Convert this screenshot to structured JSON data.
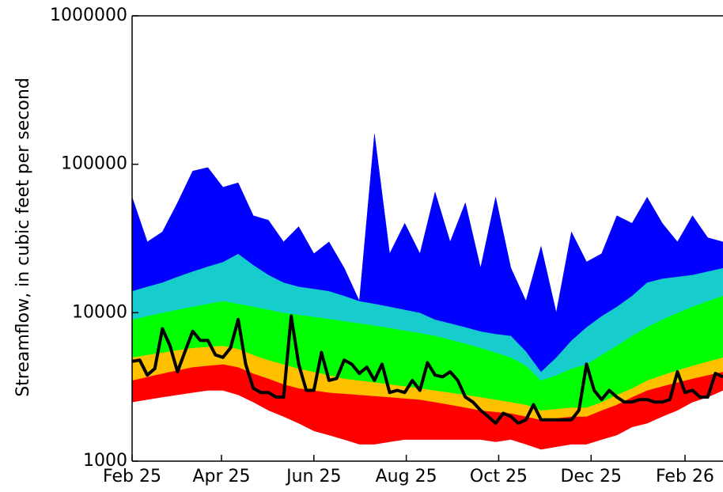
{
  "chart_data": {
    "type": "band",
    "ylabel": "Streamflow, in cubic feet per second",
    "ylog": true,
    "ylim": [
      1000,
      1000000
    ],
    "yticks": [
      1000,
      10000,
      100000,
      1000000
    ],
    "xlim": [
      0,
      390
    ],
    "xticks": [
      {
        "value": 0,
        "label": "Feb 25"
      },
      {
        "value": 59,
        "label": "Apr 25"
      },
      {
        "value": 120,
        "label": "Jun 25"
      },
      {
        "value": 181,
        "label": "Aug 25"
      },
      {
        "value": 242,
        "label": "Oct 25"
      },
      {
        "value": 303,
        "label": "Dec 25"
      },
      {
        "value": 365,
        "label": "Feb 26"
      }
    ],
    "x": [
      0,
      10,
      20,
      30,
      40,
      50,
      60,
      70,
      80,
      90,
      100,
      110,
      120,
      130,
      140,
      150,
      160,
      170,
      180,
      190,
      200,
      210,
      220,
      230,
      240,
      250,
      260,
      270,
      280,
      290,
      300,
      310,
      320,
      330,
      340,
      350,
      360,
      370,
      380,
      390
    ],
    "series": [
      {
        "values": [
          2500,
          2600,
          2700,
          2800,
          2900,
          3000,
          3000,
          2800,
          2500,
          2200,
          2000,
          1800,
          1600,
          1500,
          1400,
          1300,
          1300,
          1350,
          1400,
          1400,
          1400,
          1400,
          1400,
          1400,
          1350,
          1400,
          1300,
          1200,
          1250,
          1300,
          1300,
          1400,
          1500,
          1700,
          1800,
          2000,
          2200,
          2500,
          2700,
          3000
        ]
      },
      {
        "color": "#ff0000",
        "values": [
          3500,
          3700,
          3900,
          4100,
          4300,
          4400,
          4500,
          4300,
          3900,
          3600,
          3300,
          3100,
          3000,
          2900,
          2850,
          2800,
          2750,
          2700,
          2650,
          2600,
          2500,
          2400,
          2300,
          2200,
          2150,
          2100,
          2000,
          1900,
          1950,
          2000,
          2000,
          2200,
          2400,
          2700,
          3000,
          3200,
          3400,
          3600,
          3800,
          4000
        ]
      },
      {
        "color": "#ffc000",
        "values": [
          5000,
          5200,
          5400,
          5600,
          5800,
          5900,
          6000,
          5700,
          5200,
          4800,
          4500,
          4200,
          4000,
          3800,
          3600,
          3500,
          3400,
          3300,
          3200,
          3100,
          3000,
          2900,
          2800,
          2700,
          2600,
          2500,
          2400,
          2200,
          2250,
          2300,
          2300,
          2500,
          2800,
          3100,
          3500,
          3800,
          4100,
          4400,
          4700,
          5000
        ]
      },
      {
        "color": "#00ff00",
        "values": [
          9000,
          9500,
          10000,
          10500,
          11000,
          11500,
          12000,
          11500,
          11000,
          10500,
          10000,
          9700,
          9400,
          9100,
          8800,
          8500,
          8200,
          7900,
          7600,
          7300,
          7000,
          6600,
          6200,
          5800,
          5400,
          5000,
          4400,
          3500,
          3800,
          4200,
          4500,
          5200,
          6000,
          7000,
          8000,
          9000,
          10000,
          11000,
          12000,
          13000
        ]
      },
      {
        "color": "#17cccc",
        "values": [
          14000,
          15000,
          16000,
          17500,
          19000,
          20500,
          22000,
          25000,
          21000,
          18000,
          16000,
          15000,
          14500,
          14000,
          13000,
          12000,
          11500,
          11000,
          10500,
          10000,
          9000,
          8500,
          8000,
          7500,
          7200,
          7000,
          5500,
          4000,
          5000,
          6500,
          8000,
          9500,
          11000,
          13000,
          16000,
          17000,
          17500,
          18000,
          19000,
          20000
        ]
      },
      {
        "color": "#0000ff",
        "values": [
          60000,
          30000,
          35000,
          55000,
          90000,
          95000,
          70000,
          75000,
          45000,
          42000,
          30000,
          38000,
          25000,
          30000,
          20000,
          12000,
          160000,
          25000,
          40000,
          25000,
          65000,
          30000,
          55000,
          20000,
          60000,
          20000,
          12000,
          28000,
          10000,
          35000,
          22000,
          25000,
          45000,
          40000,
          60000,
          40000,
          30000,
          45000,
          32000,
          30000
        ]
      },
      {
        "color": "#000000",
        "line": true,
        "x": [
          0,
          5,
          10,
          15,
          20,
          25,
          30,
          35,
          40,
          45,
          50,
          55,
          60,
          65,
          70,
          75,
          80,
          85,
          90,
          95,
          100,
          105,
          110,
          115,
          120,
          125,
          130,
          135,
          140,
          145,
          150,
          155,
          160,
          165,
          170,
          175,
          180,
          185,
          190,
          195,
          200,
          205,
          210,
          215,
          220,
          225,
          230,
          235,
          240,
          245,
          250,
          255,
          260,
          265,
          270,
          275,
          280,
          285,
          290,
          295,
          300,
          305,
          310,
          315,
          320,
          325,
          330,
          335,
          340,
          345,
          350,
          355,
          360,
          365,
          370,
          375,
          380,
          385,
          390
        ],
        "values": [
          4700,
          4800,
          3800,
          4200,
          7800,
          6000,
          4000,
          5500,
          7500,
          6500,
          6500,
          5200,
          5000,
          5800,
          9000,
          4500,
          3100,
          2900,
          2900,
          2700,
          2700,
          9500,
          4500,
          3000,
          3000,
          5400,
          3500,
          3600,
          4800,
          4500,
          3900,
          4300,
          3500,
          4500,
          2900,
          3000,
          2900,
          3500,
          3000,
          4600,
          3800,
          3700,
          4000,
          3500,
          2700,
          2500,
          2200,
          2000,
          1800,
          2100,
          2000,
          1800,
          1900,
          2400,
          1900,
          1900,
          1900,
          1900,
          1900,
          2200,
          4500,
          3000,
          2600,
          3000,
          2700,
          2500,
          2500,
          2600,
          2600,
          2500,
          2500,
          2600,
          4000,
          2900,
          3000,
          2700,
          2700,
          3900,
          3700
        ]
      }
    ]
  }
}
